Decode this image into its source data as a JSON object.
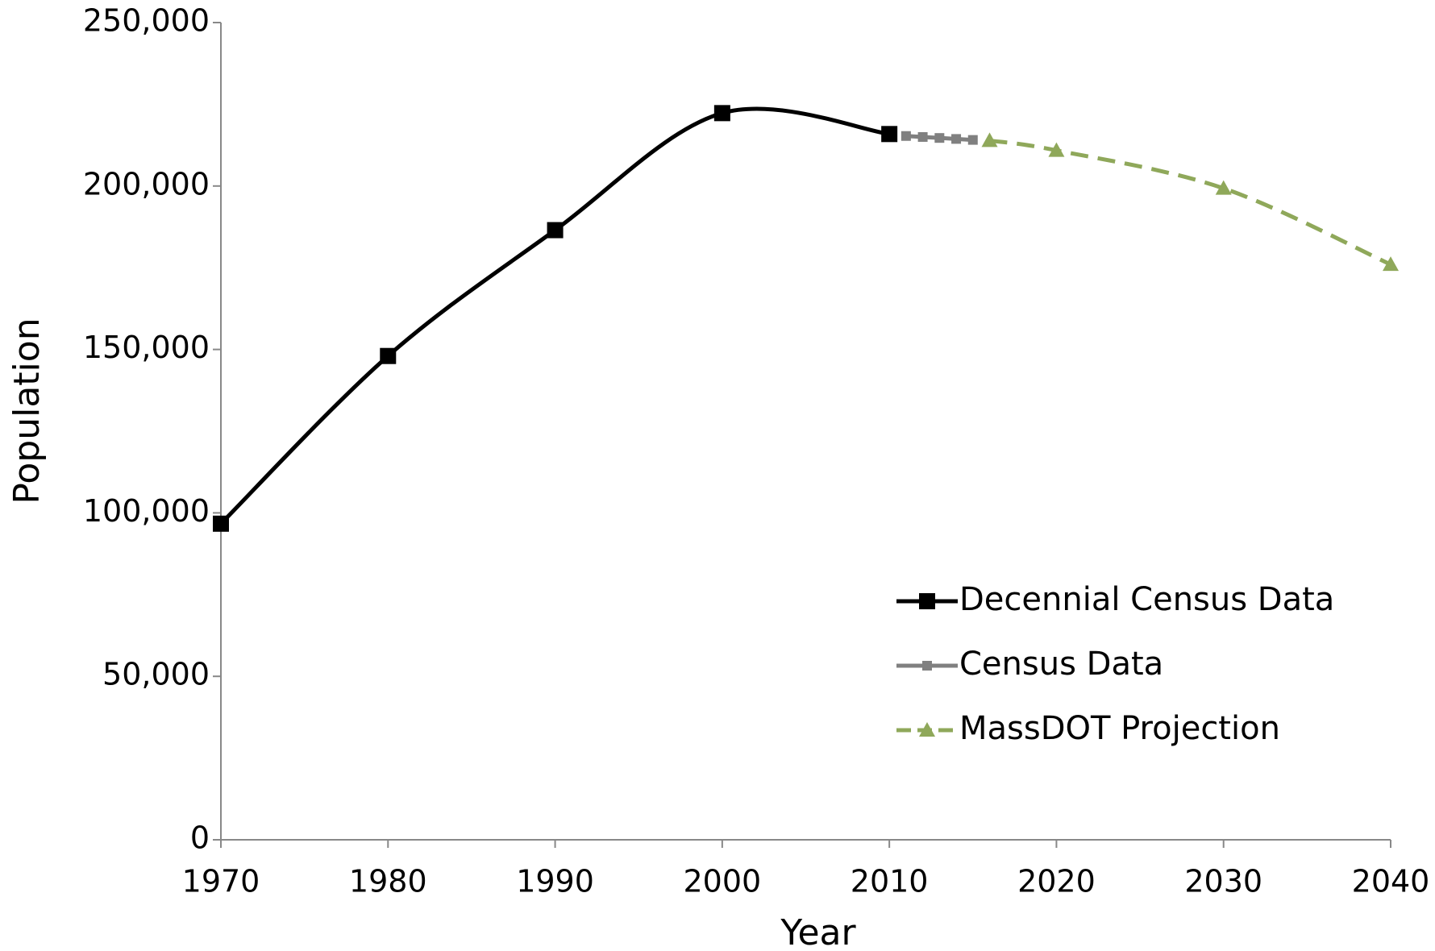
{
  "chart_data": {
    "type": "line",
    "x_label": "Year",
    "y_label": "Population",
    "xlim": [
      1970,
      2040
    ],
    "xticks": [
      1970,
      1980,
      1990,
      2000,
      2010,
      2020,
      2030,
      2040
    ],
    "ylim": [
      0,
      250000
    ],
    "yticks": [
      0,
      {
        "value": 50000,
        "label": "50,000"
      },
      {
        "value": 100000,
        "label": "100,000"
      },
      {
        "value": 150000,
        "label": "150,000"
      },
      {
        "value": 200000,
        "label": "200,000"
      },
      {
        "value": 250000,
        "label": "250,000"
      }
    ],
    "grid": false,
    "smooth": true,
    "legend": "lower right",
    "series": [
      {
        "name": "Decennial Census Data",
        "color": "#000000",
        "marker": "square",
        "dashed": false,
        "x": [
          1970,
          1980,
          1990,
          2000,
          2010
        ],
        "values": [
          96700,
          148000,
          186500,
          222300,
          215900
        ]
      },
      {
        "name": "Census Data",
        "color": "#808080",
        "marker": "small-square",
        "dashed": false,
        "x": [
          2011,
          2012,
          2013,
          2014,
          2015
        ],
        "values": [
          215300,
          215000,
          214700,
          214400,
          214100
        ]
      },
      {
        "name": "MassDOT Projection",
        "color": "#8fa85a",
        "marker": "triangle",
        "dashed": true,
        "x": [
          2016,
          2020,
          2030,
          2040
        ],
        "values": [
          213900,
          210900,
          199300,
          176000
        ]
      }
    ]
  }
}
